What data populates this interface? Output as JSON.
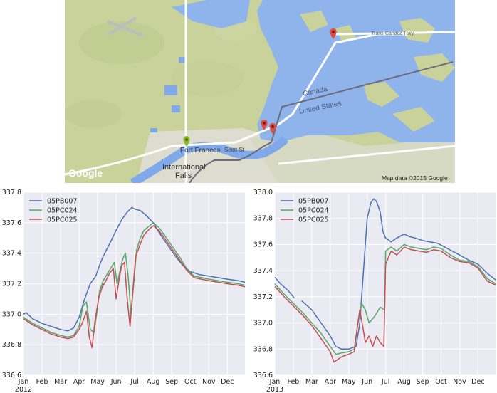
{
  "map": {
    "places": {
      "fort_frances": "Fort Frances",
      "international_falls_1": "International",
      "international_falls_2": "Falls",
      "scott_st": "Scott St",
      "canada": "Canada",
      "united_states": "United States",
      "trans_canada_hwy": "Trans-Canada Hwy"
    },
    "attribution": "Map data ©2015 Google",
    "logo": "Google",
    "colors": {
      "land": "#c9d29b",
      "water": "#a3c3ee",
      "lake": "#7fa9e8",
      "border": "#6b6b7a",
      "road": "#ffffff",
      "marker_red": "#e04a3f",
      "marker_green": "#8cbf26"
    }
  },
  "chart_data": [
    {
      "type": "line",
      "year_label": "2012",
      "ylim": [
        336.6,
        337.8
      ],
      "yticks": [
        "336.6",
        "336.8",
        "337.0",
        "337.2",
        "337.4",
        "337.6",
        "337.8"
      ],
      "xticks": [
        "Jan",
        "Feb",
        "Mar",
        "Apr",
        "May",
        "Jun",
        "Jul",
        "Aug",
        "Sep",
        "Oct",
        "Nov",
        "Dec"
      ],
      "x_month_range": [
        0,
        11.95
      ],
      "grid": true,
      "legend_position": "upper-left",
      "series": [
        {
          "name": "05PB007",
          "color": "#4c72b0",
          "points": [
            [
              0,
              337.0
            ],
            [
              0.15,
              337.01
            ],
            [
              0.5,
              336.97
            ],
            [
              1,
              336.94
            ],
            [
              1.5,
              336.92
            ],
            [
              2,
              336.9
            ],
            [
              2.4,
              336.89
            ],
            [
              2.7,
              336.91
            ],
            [
              3,
              336.98
            ],
            [
              3.3,
              337.1
            ],
            [
              3.6,
              337.2
            ],
            [
              3.9,
              337.25
            ],
            [
              4.1,
              337.32
            ],
            [
              4.3,
              337.38
            ],
            [
              4.6,
              337.45
            ],
            [
              5,
              337.55
            ],
            [
              5.3,
              337.62
            ],
            [
              5.6,
              337.67
            ],
            [
              5.85,
              337.7
            ],
            [
              6,
              337.69
            ],
            [
              6.3,
              337.68
            ],
            [
              6.6,
              337.65
            ],
            [
              7,
              337.6
            ],
            [
              7.4,
              337.52
            ],
            [
              7.8,
              337.45
            ],
            [
              8.2,
              337.38
            ],
            [
              8.6,
              337.32
            ],
            [
              9,
              337.28
            ],
            [
              9.5,
              337.26
            ],
            [
              10,
              337.25
            ],
            [
              10.5,
              337.24
            ],
            [
              11,
              337.23
            ],
            [
              11.6,
              337.22
            ],
            [
              11.95,
              337.21
            ]
          ]
        },
        {
          "name": "05PC024",
          "color": "#55a868",
          "points": [
            [
              0,
              336.98
            ],
            [
              0.5,
              336.94
            ],
            [
              1,
              336.91
            ],
            [
              1.5,
              336.88
            ],
            [
              2,
              336.86
            ],
            [
              2.4,
              336.85
            ],
            [
              2.7,
              336.86
            ],
            [
              3,
              336.92
            ],
            [
              3.2,
              337.05
            ],
            [
              3.4,
              337.08
            ],
            [
              3.6,
              336.9
            ],
            [
              3.8,
              336.88
            ],
            [
              3.95,
              337.0
            ],
            [
              4.1,
              337.15
            ],
            [
              4.3,
              337.22
            ],
            [
              4.5,
              337.26
            ],
            [
              4.7,
              337.3
            ],
            [
              4.9,
              337.34
            ],
            [
              5.05,
              337.2
            ],
            [
              5.2,
              337.28
            ],
            [
              5.35,
              337.36
            ],
            [
              5.5,
              337.4
            ],
            [
              5.65,
              337.25
            ],
            [
              5.8,
              337.0
            ],
            [
              5.95,
              337.2
            ],
            [
              6.1,
              337.42
            ],
            [
              6.3,
              337.5
            ],
            [
              6.5,
              337.55
            ],
            [
              6.8,
              337.58
            ],
            [
              7,
              337.6
            ],
            [
              7.3,
              337.57
            ],
            [
              7.6,
              337.52
            ],
            [
              8,
              337.45
            ],
            [
              8.4,
              337.38
            ],
            [
              8.8,
              337.3
            ],
            [
              9.2,
              337.25
            ],
            [
              9.6,
              337.24
            ],
            [
              10,
              337.23
            ],
            [
              10.5,
              337.22
            ],
            [
              11,
              337.21
            ],
            [
              11.6,
              337.2
            ],
            [
              11.95,
              337.19
            ]
          ]
        },
        {
          "name": "05PC025",
          "color": "#c44e52",
          "points": [
            [
              0,
              336.97
            ],
            [
              0.5,
              336.93
            ],
            [
              1,
              336.9
            ],
            [
              1.5,
              336.87
            ],
            [
              2,
              336.85
            ],
            [
              2.4,
              336.84
            ],
            [
              2.7,
              336.85
            ],
            [
              3,
              336.9
            ],
            [
              3.2,
              336.95
            ],
            [
              3.4,
              337.02
            ],
            [
              3.55,
              336.85
            ],
            [
              3.7,
              336.78
            ],
            [
              3.85,
              336.95
            ],
            [
              4.05,
              337.1
            ],
            [
              4.25,
              337.18
            ],
            [
              4.45,
              337.22
            ],
            [
              4.65,
              337.27
            ],
            [
              4.85,
              337.3
            ],
            [
              5.0,
              337.1
            ],
            [
              5.15,
              337.22
            ],
            [
              5.3,
              337.32
            ],
            [
              5.45,
              337.34
            ],
            [
              5.6,
              337.1
            ],
            [
              5.75,
              336.92
            ],
            [
              5.9,
              337.15
            ],
            [
              6.05,
              337.38
            ],
            [
              6.3,
              337.46
            ],
            [
              6.5,
              337.52
            ],
            [
              6.8,
              337.56
            ],
            [
              7,
              337.58
            ],
            [
              7.3,
              337.55
            ],
            [
              7.6,
              337.5
            ],
            [
              8,
              337.43
            ],
            [
              8.4,
              337.36
            ],
            [
              8.8,
              337.29
            ],
            [
              9.2,
              337.24
            ],
            [
              9.6,
              337.23
            ],
            [
              10,
              337.22
            ],
            [
              10.5,
              337.21
            ],
            [
              11,
              337.2
            ],
            [
              11.6,
              337.19
            ],
            [
              11.95,
              337.18
            ]
          ]
        }
      ]
    },
    {
      "type": "line",
      "year_label": "2013",
      "ylim": [
        336.6,
        338.0
      ],
      "yticks": [
        "336.6",
        "336.8",
        "337.0",
        "337.2",
        "337.4",
        "337.6",
        "337.8",
        "338.0"
      ],
      "xticks": [
        "Jan",
        "Feb",
        "Mar",
        "Apr",
        "May",
        "Jun",
        "Jul",
        "Aug",
        "Sep",
        "Oct",
        "Nov",
        "Dec"
      ],
      "x_month_range": [
        0,
        11.95
      ],
      "grid": true,
      "legend_position": "upper-left",
      "series": [
        {
          "name": "05PB007",
          "color": "#4c72b0",
          "segments": [
            [
              [
                0,
                337.35
              ],
              [
                0.3,
                337.3
              ],
              [
                0.7,
                337.25
              ],
              [
                1.0,
                337.2
              ],
              [
                1.05,
                337.19
              ]
            ],
            [
              [
                1.45,
                337.17
              ],
              [
                2,
                337.1
              ],
              [
                2.5,
                337.0
              ],
              [
                3,
                336.9
              ],
              [
                3.3,
                336.82
              ],
              [
                3.6,
                336.8
              ],
              [
                4,
                336.8
              ],
              [
                4.4,
                336.82
              ],
              [
                4.6,
                337.0
              ],
              [
                4.8,
                337.4
              ],
              [
                5.0,
                337.8
              ],
              [
                5.2,
                337.92
              ],
              [
                5.35,
                337.95
              ],
              [
                5.5,
                337.93
              ],
              [
                5.7,
                337.85
              ],
              [
                5.85,
                337.7
              ],
              [
                6.0,
                337.65
              ],
              [
                6.3,
                337.62
              ],
              [
                6.6,
                337.65
              ],
              [
                7,
                337.68
              ],
              [
                7.3,
                337.66
              ],
              [
                7.6,
                337.65
              ],
              [
                8,
                337.63
              ],
              [
                8.4,
                337.62
              ],
              [
                8.8,
                337.61
              ],
              [
                9.2,
                337.58
              ],
              [
                9.6,
                337.55
              ],
              [
                10,
                337.52
              ],
              [
                10.5,
                337.48
              ],
              [
                11,
                337.45
              ],
              [
                11.5,
                337.38
              ],
              [
                11.95,
                337.33
              ]
            ]
          ]
        },
        {
          "name": "05PC024",
          "color": "#55a868",
          "segments": [
            [
              [
                0,
                337.3
              ],
              [
                0.5,
                337.22
              ],
              [
                1,
                337.15
              ],
              [
                1.5,
                337.08
              ],
              [
                2,
                337.0
              ],
              [
                2.5,
                336.92
              ],
              [
                3,
                336.82
              ],
              [
                3.3,
                336.76
              ],
              [
                3.6,
                336.77
              ],
              [
                4,
                336.78
              ],
              [
                4.3,
                336.8
              ],
              [
                4.5,
                337.0
              ],
              [
                4.7,
                337.15
              ],
              [
                4.9,
                337.1
              ],
              [
                5.1,
                337.0
              ],
              [
                5.4,
                337.05
              ],
              [
                5.7,
                337.12
              ],
              [
                5.95,
                337.1
              ],
              [
                6.0,
                337.55
              ],
              [
                6.3,
                337.58
              ],
              [
                6.6,
                337.55
              ],
              [
                7,
                337.6
              ],
              [
                7.4,
                337.58
              ],
              [
                7.8,
                337.57
              ],
              [
                8.2,
                337.56
              ],
              [
                8.6,
                337.58
              ],
              [
                9,
                337.57
              ],
              [
                9.5,
                337.52
              ],
              [
                10,
                337.48
              ],
              [
                10.5,
                337.47
              ],
              [
                11,
                337.43
              ],
              [
                11.5,
                337.34
              ],
              [
                11.95,
                337.3
              ]
            ]
          ]
        },
        {
          "name": "05PC025",
          "color": "#c44e52",
          "segments": [
            [
              [
                0,
                337.28
              ],
              [
                0.5,
                337.2
              ],
              [
                1,
                337.13
              ],
              [
                1.5,
                337.06
              ],
              [
                2,
                336.98
              ],
              [
                2.5,
                336.88
              ],
              [
                3,
                336.78
              ],
              [
                3.2,
                336.7
              ],
              [
                3.4,
                336.72
              ],
              [
                3.6,
                336.74
              ],
              [
                4,
                336.76
              ],
              [
                4.3,
                336.78
              ],
              [
                4.45,
                336.95
              ],
              [
                4.6,
                337.1
              ],
              [
                4.75,
                336.98
              ],
              [
                4.9,
                336.85
              ],
              [
                5.1,
                336.9
              ],
              [
                5.3,
                336.82
              ],
              [
                5.5,
                336.9
              ],
              [
                5.7,
                336.85
              ],
              [
                5.9,
                336.82
              ],
              [
                6.0,
                337.45
              ],
              [
                6.3,
                337.55
              ],
              [
                6.6,
                337.52
              ],
              [
                7,
                337.58
              ],
              [
                7.4,
                337.56
              ],
              [
                7.8,
                337.55
              ],
              [
                8.2,
                337.54
              ],
              [
                8.6,
                337.56
              ],
              [
                9,
                337.55
              ],
              [
                9.5,
                337.5
              ],
              [
                10,
                337.47
              ],
              [
                10.5,
                337.46
              ],
              [
                11,
                337.42
              ],
              [
                11.5,
                337.32
              ],
              [
                11.95,
                337.29
              ]
            ]
          ]
        }
      ]
    }
  ]
}
